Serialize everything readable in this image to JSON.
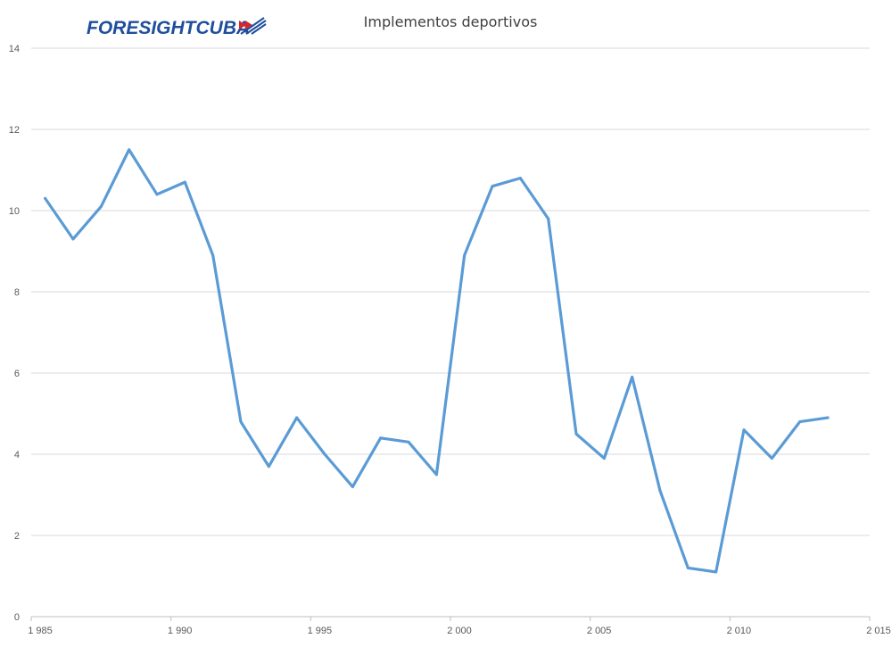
{
  "logo": {
    "text": "FORESIGHTCUBA"
  },
  "chart_data": {
    "type": "line",
    "title": "Implementos deportivos",
    "xlabel": "",
    "ylabel": "",
    "xlim": [
      1985,
      2015
    ],
    "ylim": [
      0,
      14
    ],
    "x_ticks": [
      1985,
      1990,
      1995,
      2000,
      2005,
      2010,
      2015
    ],
    "x_tick_labels": [
      "1 985",
      "1 990",
      "1 995",
      "2 000",
      "2 005",
      "2 010",
      "2 015"
    ],
    "y_ticks": [
      0,
      2,
      4,
      6,
      8,
      10,
      12,
      14
    ],
    "y_tick_labels": [
      "0",
      "2",
      "4",
      "6",
      "8",
      "10",
      "12",
      "14"
    ],
    "grid": true,
    "series": [
      {
        "color": "#5b9bd5",
        "x": [
          1985,
          1986,
          1987,
          1988,
          1989,
          1990,
          1991,
          1992,
          1993,
          1994,
          1995,
          1996,
          1997,
          1998,
          1999,
          2000,
          2001,
          2002,
          2003,
          2004,
          2005,
          2006,
          2007,
          2008,
          2009,
          2010,
          2011,
          2012,
          2013
        ],
        "values": [
          10.3,
          9.3,
          10.1,
          11.5,
          10.4,
          10.7,
          8.9,
          4.8,
          3.7,
          4.9,
          4.0,
          3.2,
          4.4,
          4.3,
          3.5,
          8.9,
          10.6,
          10.8,
          9.8,
          4.5,
          3.9,
          5.9,
          3.1,
          1.2,
          1.1,
          4.6,
          3.9,
          4.8,
          4.9
        ]
      }
    ],
    "gridline_color": "#d9d9d9",
    "axis_color": "#bfbfbf"
  }
}
